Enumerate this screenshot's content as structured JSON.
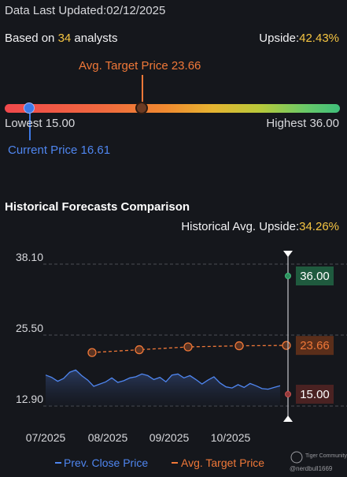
{
  "header": {
    "last_updated_label": "Data Last Updated:",
    "last_updated_value": "02/12/2025"
  },
  "summary": {
    "based_on_prefix": "Based on ",
    "analyst_count": "34",
    "based_on_suffix": " analysts",
    "upside_label": "Upside:",
    "upside_value": "42.43%"
  },
  "price_range": {
    "avg_target_label": "Avg. Target Price 23.66",
    "lowest_label": "Lowest 15.00",
    "highest_label": "Highest 36.00",
    "current_label": "Current Price 16.61"
  },
  "historical": {
    "title": "Historical Forecasts Comparison",
    "upside_label": "Historical Avg. Upside:",
    "upside_value": "34.26%"
  },
  "colors": {
    "accent_yellow": "#f5c542",
    "avg_orange": "#f07838",
    "current_blue": "#4f86f0",
    "high_green": "#2f8f5f",
    "low_red": "#8f3a3a"
  },
  "chart_data": {
    "type": "line",
    "x_ticks": [
      "07/2025",
      "08/2025",
      "09/2025",
      "10/2025"
    ],
    "y_ticks": [
      "38.10",
      "25.50",
      "12.90"
    ],
    "ylim": [
      12.9,
      38.1
    ],
    "series": [
      {
        "name": "Prev. Close Price",
        "color": "#4f86f0",
        "values": [
          18.4,
          18.0,
          17.3,
          17.8,
          18.9,
          19.3,
          18.3,
          17.5,
          16.4,
          16.8,
          17.2,
          17.9,
          17.1,
          17.4,
          17.9,
          18.1,
          18.6,
          18.3,
          17.6,
          18.0,
          17.2,
          18.4,
          18.6,
          17.9,
          18.3,
          17.6,
          16.8,
          17.5,
          18.1,
          17.0,
          16.3,
          16.1,
          16.7,
          16.2,
          16.9,
          16.5,
          16.0,
          15.9,
          16.2,
          16.5
        ]
      },
      {
        "name": "Avg. Target Price",
        "color": "#f07838",
        "values": [
          22.4,
          22.9,
          23.4,
          23.6,
          23.66
        ]
      }
    ],
    "end_markers": {
      "high": "36.00",
      "avg": "23.66",
      "low": "15.00"
    },
    "legend": [
      "Prev. Close Price",
      "Avg. Target Price"
    ],
    "watermark": [
      "Tiger Community",
      "@nerdbull1669"
    ]
  }
}
